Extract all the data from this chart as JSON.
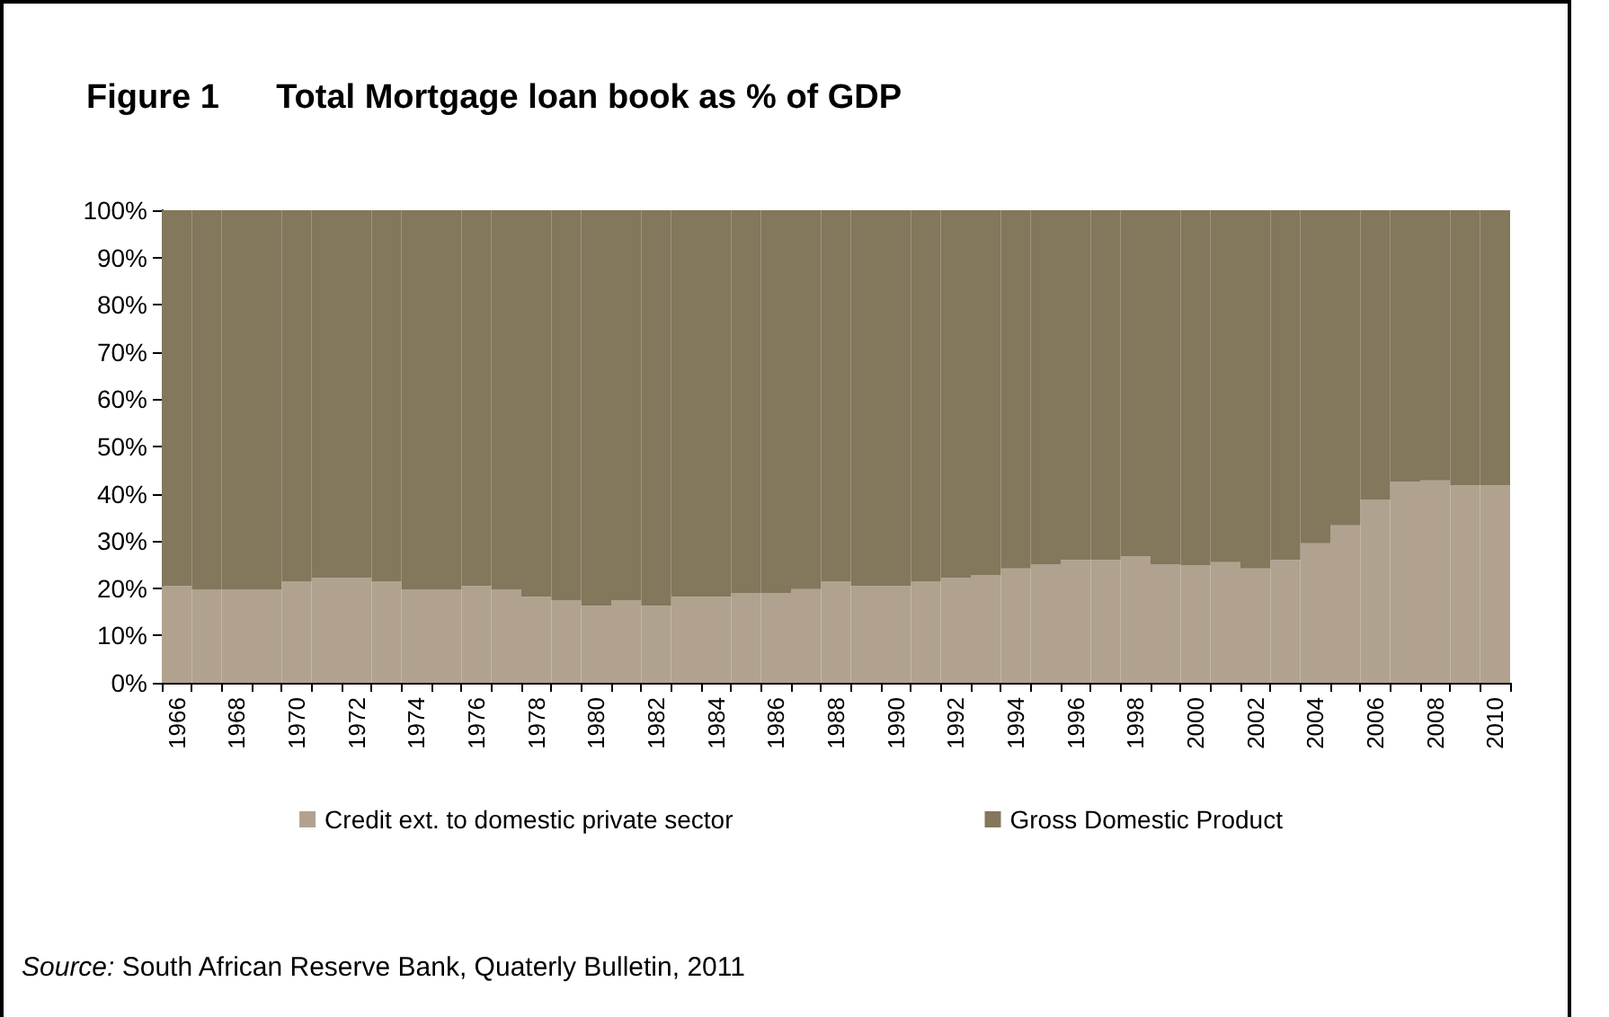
{
  "chart_data": {
    "type": "bar",
    "stacked": true,
    "title": "Figure 1      Total Mortgage loan book as % of GDP",
    "categories": [
      "1966",
      null,
      "1968",
      null,
      "1970",
      null,
      "1972",
      null,
      "1974",
      null,
      "1976",
      null,
      "1978",
      null,
      "1980",
      null,
      "1982",
      null,
      "1984",
      null,
      "1986",
      null,
      "1988",
      null,
      "1990",
      null,
      "1992",
      null,
      "1994",
      null,
      "1996",
      null,
      "1998",
      null,
      "2000",
      null,
      "2002",
      null,
      "2004",
      null,
      "2006",
      null,
      "2008",
      null,
      "2010"
    ],
    "series": [
      {
        "name": "Credit ext. to domestic private sector",
        "color": "#b0a28e",
        "values": [
          20.5,
          19.7,
          19.7,
          19.7,
          21.5,
          22.2,
          22.2,
          21.5,
          19.7,
          19.7,
          20.5,
          19.7,
          18.2,
          17.5,
          16.3,
          17.5,
          16.3,
          18.2,
          18.2,
          19,
          19,
          19.8,
          21.5,
          20.5,
          20.5,
          21.5,
          22.2,
          22.8,
          24.2,
          25,
          26,
          26,
          26.8,
          25,
          24.8,
          25.5,
          24.2,
          26,
          29.5,
          33.3,
          38.8,
          42.5,
          42.8,
          41.8,
          41.8
        ]
      },
      {
        "name": "Gross Domestic Product",
        "color": "#83775c",
        "values": [
          79.5,
          80.3,
          80.3,
          80.3,
          78.5,
          77.8,
          77.8,
          78.5,
          80.3,
          80.3,
          79.5,
          80.3,
          81.8,
          82.5,
          83.7,
          82.5,
          83.7,
          81.8,
          81.8,
          81,
          81,
          80.2,
          78.5,
          79.5,
          79.5,
          78.5,
          77.8,
          77.2,
          75.8,
          75,
          74,
          74,
          73.2,
          75,
          75.2,
          74.5,
          75.8,
          74,
          70.5,
          66.7,
          61.2,
          57.5,
          57.2,
          58.2,
          58.2
        ]
      }
    ],
    "ylim": [
      0,
      100
    ],
    "yticks": [
      {
        "value": 0,
        "label": "0%"
      },
      {
        "value": 10,
        "label": "10%"
      },
      {
        "value": 20,
        "label": "20%"
      },
      {
        "value": 30,
        "label": "30%"
      },
      {
        "value": 40,
        "label": "40%"
      },
      {
        "value": 50,
        "label": "50%"
      },
      {
        "value": 60,
        "label": "60%"
      },
      {
        "value": 70,
        "label": "70%"
      },
      {
        "value": 80,
        "label": "80%"
      },
      {
        "value": 90,
        "label": "90%"
      },
      {
        "value": 100,
        "label": "100%"
      }
    ],
    "grid": false,
    "legend": "bottom",
    "annotations": [
      "Source: South African Reserve Bank, Quaterly Bulletin, 2011"
    ]
  }
}
